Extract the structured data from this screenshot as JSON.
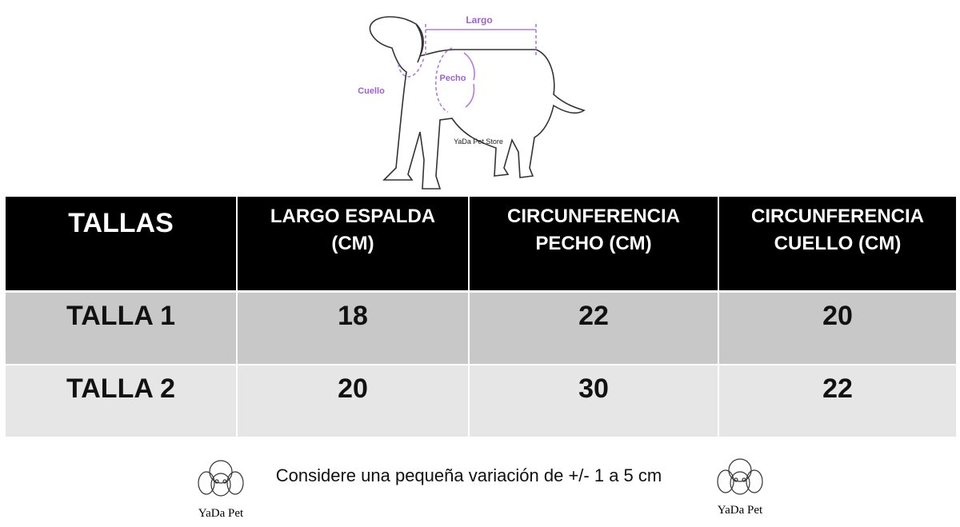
{
  "diagram": {
    "labels": {
      "length": "Largo",
      "chest": "Pecho",
      "neck": "Cuello",
      "store": "YaDa Pet Store"
    }
  },
  "table": {
    "headers": [
      [
        "TALLAS"
      ],
      [
        "LARGO ESPALDA",
        "(CM)"
      ],
      [
        "CIRCUNFERENCIA",
        "PECHO (CM)"
      ],
      [
        "CIRCUNFERENCIA",
        "CUELLO (CM)"
      ]
    ],
    "rows": [
      [
        "TALLA 1",
        18,
        22,
        20
      ],
      [
        "TALLA 2",
        20,
        30,
        22
      ]
    ]
  },
  "footer": {
    "note": "Considere una pequeña variación de +/- 1 a 5 cm",
    "logos": [
      "YaDa Pet",
      "YaDa Pet"
    ]
  }
}
